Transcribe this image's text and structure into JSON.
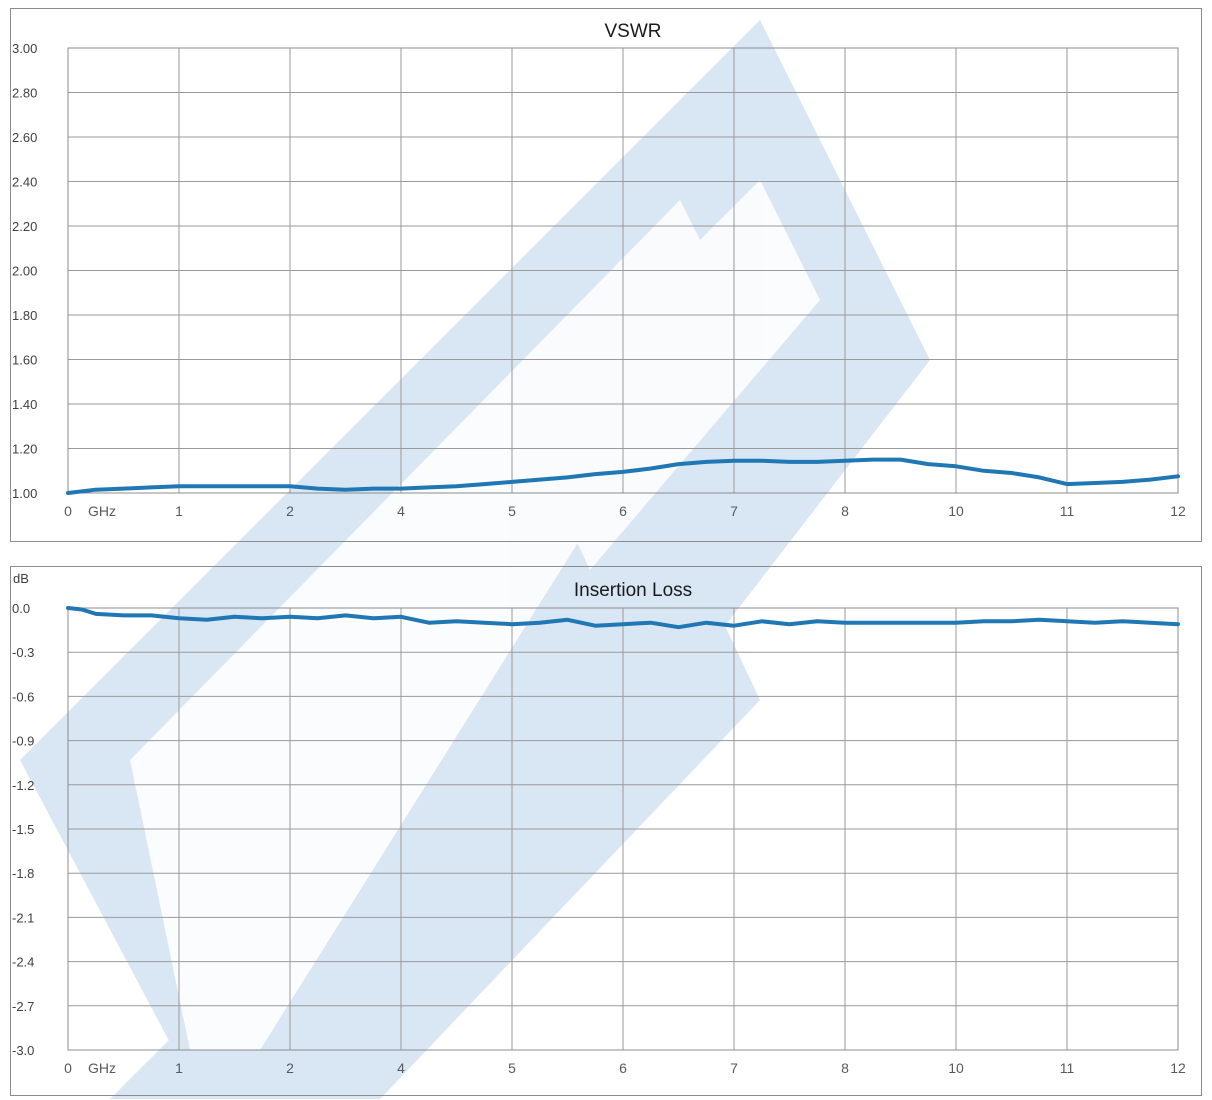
{
  "watermark": {
    "color": "#d9e6f3",
    "icon": "brand-logo-watermark"
  },
  "chart_data": [
    {
      "type": "line",
      "title": "VSWR",
      "ylabel": "",
      "x_unit": "GHz",
      "xlim": [
        0,
        20
      ],
      "ylim": [
        1.0,
        3.0
      ],
      "y_ticks": [
        "1.00",
        "1.20",
        "1.40",
        "1.60",
        "1.80",
        "2.00",
        "2.20",
        "2.40",
        "2.60",
        "2.80",
        "3.00"
      ],
      "x_tick_labels": [
        "0",
        "1",
        "2",
        "4",
        "5",
        "6",
        "7",
        "8",
        "10",
        "11",
        "12"
      ],
      "grid": true,
      "line_color": "#1f77b4",
      "series": [
        {
          "x": [
            0,
            0.5,
            1,
            1.5,
            2,
            2.5,
            3,
            3.5,
            4,
            4.5,
            5,
            5.5,
            6,
            6.5,
            7,
            7.5,
            8,
            8.5,
            9,
            9.5,
            10,
            10.5,
            11,
            11.5,
            12,
            12.5,
            13,
            13.5,
            14,
            14.5,
            15,
            15.5,
            16,
            16.5,
            17,
            17.5,
            18,
            18.5,
            19,
            19.5,
            20
          ],
          "y": [
            1.0,
            1.015,
            1.02,
            1.025,
            1.03,
            1.03,
            1.03,
            1.03,
            1.03,
            1.02,
            1.015,
            1.02,
            1.02,
            1.025,
            1.03,
            1.04,
            1.05,
            1.06,
            1.07,
            1.085,
            1.095,
            1.11,
            1.13,
            1.14,
            1.145,
            1.145,
            1.14,
            1.14,
            1.145,
            1.15,
            1.15,
            1.13,
            1.12,
            1.1,
            1.09,
            1.07,
            1.04,
            1.045,
            1.05,
            1.06,
            1.075
          ]
        }
      ]
    },
    {
      "type": "line",
      "title": "Insertion Loss",
      "ylabel": "dB",
      "x_unit": "GHz",
      "xlim": [
        0,
        20
      ],
      "ylim": [
        -3.0,
        0.0
      ],
      "y_ticks": [
        "0.0",
        "-0.3",
        "-0.6",
        "-0.9",
        "-1.2",
        "-1.5",
        "-1.8",
        "-2.1",
        "-2.4",
        "-2.7",
        "-3.0"
      ],
      "x_tick_labels": [
        "0",
        "1",
        "2",
        "4",
        "5",
        "6",
        "7",
        "8",
        "10",
        "11",
        "12"
      ],
      "grid": true,
      "line_color": "#1f77b4",
      "series": [
        {
          "x": [
            0,
            0.25,
            0.5,
            1,
            1.5,
            2,
            2.5,
            3,
            3.5,
            4,
            4.5,
            5,
            5.5,
            6,
            6.5,
            7,
            7.5,
            8,
            8.5,
            9,
            9.5,
            10,
            10.5,
            11,
            11.5,
            12,
            12.5,
            13,
            13.5,
            14,
            14.5,
            15,
            15.5,
            16,
            16.5,
            17,
            17.5,
            18,
            18.5,
            19,
            19.5,
            20
          ],
          "y": [
            0.0,
            -0.01,
            -0.04,
            -0.05,
            -0.05,
            -0.07,
            -0.08,
            -0.06,
            -0.07,
            -0.06,
            -0.07,
            -0.05,
            -0.07,
            -0.06,
            -0.1,
            -0.09,
            -0.1,
            -0.11,
            -0.1,
            -0.08,
            -0.12,
            -0.11,
            -0.1,
            -0.13,
            -0.1,
            -0.12,
            -0.09,
            -0.11,
            -0.09,
            -0.1,
            -0.1,
            -0.1,
            -0.1,
            -0.1,
            -0.09,
            -0.09,
            -0.08,
            -0.09,
            -0.1,
            -0.09,
            -0.1,
            -0.11
          ]
        }
      ]
    }
  ]
}
